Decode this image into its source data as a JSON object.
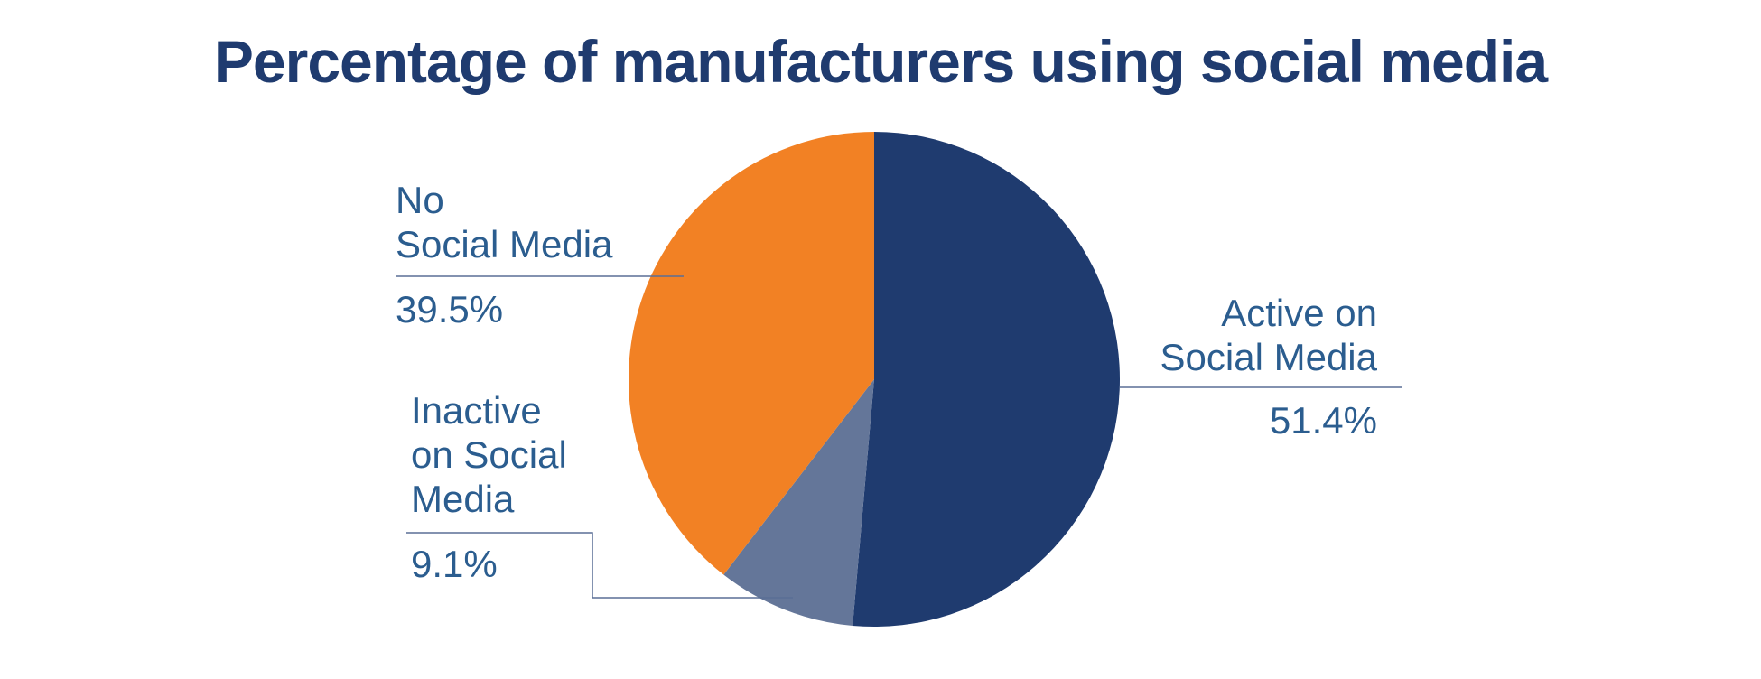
{
  "chart_data": {
    "type": "pie",
    "title": "Percentage of manufacturers using social media",
    "slices": [
      {
        "label_lines": [
          "Active on",
          "Social Media"
        ],
        "value": 51.4,
        "value_label": "51.4%",
        "color": "#1f3b6f"
      },
      {
        "label_lines": [
          "Inactive",
          "on Social",
          "Media"
        ],
        "value": 9.1,
        "value_label": "9.1%",
        "color": "#647699"
      },
      {
        "label_lines": [
          "No",
          "Social Media"
        ],
        "value": 39.5,
        "value_label": "39.5%",
        "color": "#f28124"
      }
    ],
    "start_angle": "top",
    "direction": "clockwise",
    "legend": "none"
  },
  "colors": {
    "title": "#1f3b6f",
    "label_text": "#2b5d8f",
    "leader_line": "#5a6f95"
  }
}
